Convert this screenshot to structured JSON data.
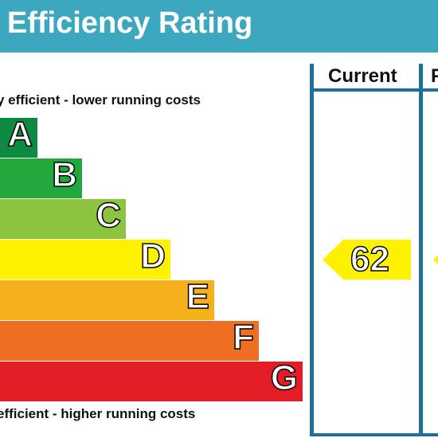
{
  "title": "gy Efficiency Rating",
  "caption_top": "y efficient - lower running costs",
  "caption_bottom": "efficient - higher running costs",
  "columns": {
    "current": "Current",
    "potential": "P"
  },
  "chart_data": {
    "type": "bar",
    "categories": [
      "A",
      "B",
      "C",
      "D",
      "E",
      "F",
      "G"
    ],
    "colors": [
      "#0d8a42",
      "#20a83b",
      "#8cc43f",
      "#fff200",
      "#f6b01b",
      "#ee6e22",
      "#e31d25"
    ],
    "current": {
      "value": 62,
      "band": "D",
      "color": "#fff200"
    },
    "potential": {
      "band": "D",
      "color": "#fff200"
    }
  },
  "colors": {
    "title_bar": "#3ca8c0",
    "frame": "#1e6f9a"
  }
}
